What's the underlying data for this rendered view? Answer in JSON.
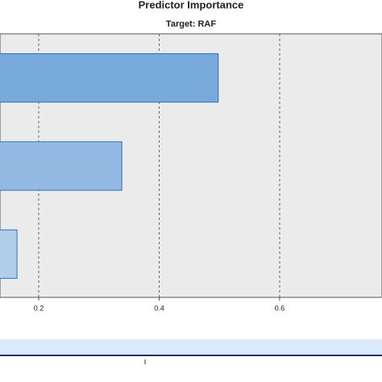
{
  "chart_data": {
    "type": "barh",
    "title": "Predictor Importance",
    "subtitle": "Target: RAF",
    "categories": [
      null,
      null,
      null
    ],
    "values": [
      0.498,
      0.338,
      0.164
    ],
    "colors": [
      "#78a9dc",
      "#93bae3",
      "#b0cde9"
    ],
    "border_color": "#2a6fc0",
    "xlim": [
      0,
      0.8
    ],
    "xticks": [
      0.2,
      0.4,
      0.6
    ],
    "grid": true
  }
}
